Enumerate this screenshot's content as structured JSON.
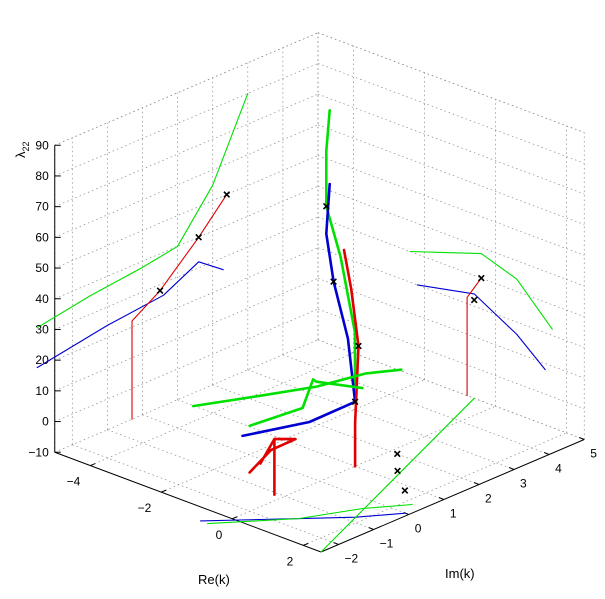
{
  "chart_data": {
    "type": "line",
    "subtype": "3d-curves-with-projections",
    "title": "",
    "xlabel": "Re(k)",
    "ylabel": "Im(k)",
    "zlabel_base": "λ",
    "zlabel_sub": "22",
    "xlim": [
      -5,
      2.5
    ],
    "ylim": [
      -2.5,
      5
    ],
    "zlim": [
      -10,
      90
    ],
    "x_ticks": [
      -4,
      -2,
      0,
      2
    ],
    "y_ticks": [
      -2,
      -1,
      0,
      1,
      2,
      3,
      4,
      5
    ],
    "z_ticks": [
      -10,
      0,
      10,
      20,
      30,
      40,
      50,
      60,
      70,
      80,
      90
    ],
    "x_tick_labels": [
      "−4",
      "−2",
      "0",
      "2"
    ],
    "y_tick_labels": [
      "−2",
      "−1",
      "0",
      "1",
      "2",
      "3",
      "4",
      "5"
    ],
    "z_tick_labels": [
      "−10",
      "0",
      "10",
      "20",
      "30",
      "40",
      "50",
      "60",
      "70",
      "80",
      "90"
    ],
    "grid": true,
    "colors": {
      "green": "#00e000",
      "blue": "#0000d0",
      "red": "#e00000",
      "marker": "#000000",
      "base": "#009000"
    },
    "series": [
      {
        "color": "green",
        "width": "thick",
        "points": [
          [
            0,
            1,
            16
          ],
          [
            -0.4,
            1.4,
            30
          ],
          [
            -1.1,
            1.7,
            50
          ],
          [
            -1.8,
            2.0,
            62
          ],
          [
            -1.8,
            2.0,
            80
          ],
          [
            -2.1,
            2.4,
            90
          ]
        ]
      },
      {
        "color": "blue",
        "width": "thick",
        "points": [
          [
            -0.6,
            -1.6,
            10
          ],
          [
            -0.3,
            0,
            8
          ],
          [
            0,
            1,
            11
          ],
          [
            -0.5,
            1.3,
            28
          ],
          [
            -1.2,
            1.6,
            42
          ],
          [
            -1.7,
            1.9,
            54
          ],
          [
            -2.1,
            2.4,
            66
          ]
        ]
      },
      {
        "color": "red",
        "width": "thick",
        "points": [
          [
            0,
            1,
            -10
          ],
          [
            0,
            1,
            4
          ],
          [
            -0.4,
            1.5,
            25
          ],
          [
            -0.9,
            1.8,
            40
          ],
          [
            -1.4,
            2.1,
            49
          ]
        ]
      },
      {
        "color": "green",
        "width": "thick",
        "points": [
          [
            -1.2,
            -2.4,
            21
          ],
          [
            -0.2,
            -1.4,
            24
          ],
          [
            0.4,
            -0.5,
            25
          ],
          [
            1.0,
            0.3,
            28
          ],
          [
            1.4,
            0.9,
            28
          ]
        ]
      },
      {
        "color": "green",
        "width": "thick",
        "points": [
          [
            -0.2,
            -1.8,
            16
          ],
          [
            0.4,
            -0.9,
            20
          ],
          [
            0.2,
            -0.4,
            26
          ],
          [
            -0.1,
            0,
            22
          ],
          [
            0.6,
            0.6,
            20
          ]
        ]
      },
      {
        "color": "red",
        "width": "thick",
        "points": [
          [
            -0.5,
            -1.5,
            -2
          ],
          [
            0,
            -1.4,
            7
          ],
          [
            0.2,
            -0.9,
            9
          ],
          [
            0.2,
            -1.5,
            12
          ],
          [
            0.1,
            -1.8,
            5
          ]
        ]
      },
      {
        "color": "red",
        "width": "thick",
        "points": [
          [
            0,
            -1.3,
            -8
          ],
          [
            0,
            -1.3,
            10
          ]
        ]
      },
      {
        "color": "blue",
        "width": "thin",
        "plane": "back-left",
        "points": [
          [
            -5,
            -3.0,
            20
          ],
          [
            -5,
            -1.0,
            24
          ],
          [
            -5,
            0.6,
            26
          ],
          [
            -5,
            1.6,
            32
          ],
          [
            -5,
            2.3,
            26
          ]
        ]
      },
      {
        "color": "green",
        "width": "thin",
        "plane": "back-left",
        "points": [
          [
            -5,
            -3.0,
            33
          ],
          [
            -5,
            -1.5,
            36
          ],
          [
            -5,
            0,
            38
          ],
          [
            -5,
            1.0,
            40
          ],
          [
            -5,
            2.0,
            55
          ],
          [
            -5,
            3.0,
            80
          ]
        ]
      },
      {
        "color": "red",
        "width": "thin",
        "plane": "back-left",
        "points": [
          [
            -5,
            -0.3,
            -10
          ],
          [
            -5,
            -0.3,
            22
          ],
          [
            -5,
            0.5,
            28
          ],
          [
            -5,
            1.6,
            40
          ],
          [
            -5,
            2.4,
            50
          ]
        ]
      },
      {
        "color": "blue",
        "width": "thin",
        "plane": "back-right",
        "points": [
          [
            -2.2,
            5,
            20
          ],
          [
            -0.6,
            5,
            24
          ],
          [
            0.6,
            5,
            16
          ],
          [
            1.4,
            5,
            8
          ]
        ]
      },
      {
        "color": "green",
        "width": "thin",
        "plane": "back-right",
        "points": [
          [
            -2.4,
            5,
            30
          ],
          [
            -1.4,
            5,
            34
          ],
          [
            -0.4,
            5,
            38
          ],
          [
            0.6,
            5,
            34
          ],
          [
            1.6,
            5,
            22
          ]
        ]
      },
      {
        "color": "red",
        "width": "thin",
        "plane": "back-right",
        "points": [
          [
            -0.8,
            5,
            -10
          ],
          [
            -0.8,
            5,
            22
          ],
          [
            -0.4,
            5,
            30
          ]
        ]
      },
      {
        "color": "blue",
        "width": "thin",
        "plane": "floor",
        "points": [
          [
            -0.4,
            -3.0,
            -10
          ],
          [
            0.8,
            -1.8,
            -10
          ],
          [
            1.8,
            -0.8,
            -10
          ],
          [
            2.4,
            0,
            -10
          ]
        ]
      },
      {
        "color": "green",
        "width": "thin",
        "plane": "floor",
        "points": [
          [
            -0.2,
            -3.0,
            -10
          ],
          [
            1.0,
            -1.6,
            -10
          ],
          [
            1.6,
            -0.4,
            -10
          ],
          [
            2.2,
            0.4,
            -10
          ]
        ]
      },
      {
        "color": "green",
        "width": "thin",
        "plane": "floor",
        "points": [
          [
            2.5,
            -2.5,
            -10
          ],
          [
            -0.6,
            5,
            -10
          ]
        ]
      }
    ],
    "markers": [
      [
        -1.8,
        2.0,
        62
      ],
      [
        -0.4,
        1.5,
        25
      ],
      [
        0,
        1,
        11
      ],
      [
        -1.2,
        1.6,
        42
      ],
      [
        -5,
        1.6,
        40
      ],
      [
        -5,
        0.5,
        28
      ],
      [
        -5,
        2.4,
        50
      ],
      [
        -0.6,
        5,
        22
      ],
      [
        -0.4,
        5,
        30
      ],
      [
        1.6,
        0.8,
        -10
      ],
      [
        0.2,
        2.0,
        -10
      ],
      [
        0.8,
        1.4,
        -10
      ]
    ]
  }
}
